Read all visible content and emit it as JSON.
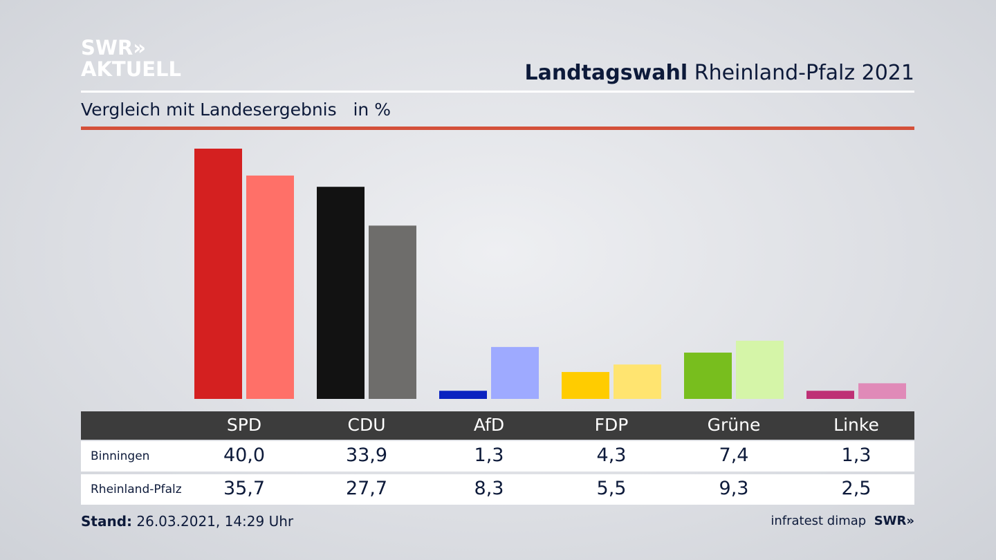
{
  "logo": {
    "line1": "SWR»",
    "line2": "AKTUELL"
  },
  "header": {
    "title_bold": "Landtagswahl",
    "title_rest": "Rheinland-Pfalz 2021",
    "subtitle": "Vergleich mit Landesergebnis",
    "unit": "in %"
  },
  "chart_data": {
    "type": "bar",
    "categories": [
      "SPD",
      "CDU",
      "AfD",
      "FDP",
      "Grüne",
      "Linke"
    ],
    "series": [
      {
        "name": "Binningen",
        "values": [
          40.0,
          33.9,
          1.3,
          4.3,
          7.4,
          1.3
        ],
        "labels": [
          "40,0",
          "33,9",
          "1,3",
          "4,3",
          "7,4",
          "1,3"
        ],
        "colors": [
          "#d42020",
          "#121212",
          "#0a22c0",
          "#ffcc00",
          "#78be1e",
          "#be3075"
        ]
      },
      {
        "name": "Rheinland-Pfalz",
        "values": [
          35.7,
          27.7,
          8.3,
          5.5,
          9.3,
          2.5
        ],
        "labels": [
          "35,7",
          "27,7",
          "8,3",
          "5,5",
          "9,3",
          "2,5"
        ],
        "colors": [
          "#ff7068",
          "#6e6d6b",
          "#9eaaff",
          "#ffe470",
          "#d5f5a8",
          "#e08ab8"
        ]
      }
    ],
    "ylim": [
      0,
      40
    ]
  },
  "footer": {
    "stand_label": "Stand:",
    "stand_value": "26.03.2021, 14:29 Uhr",
    "source": "infratest dimap",
    "brand": "SWR»"
  }
}
